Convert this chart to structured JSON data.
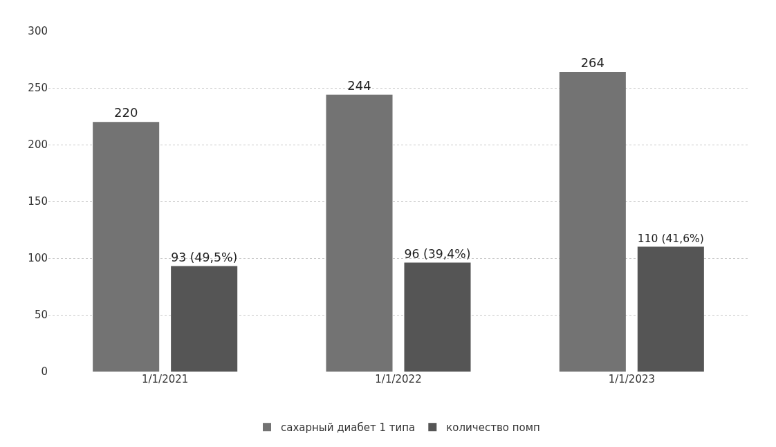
{
  "chart_data": {
    "type": "bar",
    "categories": [
      "1/1/2021",
      "1/1/2022",
      "1/1/2023"
    ],
    "series": [
      {
        "name": "сахарный диабет 1 типа",
        "color": "#737373",
        "values": [
          220,
          244,
          264
        ],
        "value_labels": [
          "220",
          "244",
          "264"
        ]
      },
      {
        "name": "количество помп",
        "color": "#555555",
        "values": [
          93,
          96,
          110
        ],
        "value_labels": [
          "93 (49,5%)",
          "96 (39,4%)",
          "110 (41,6%)"
        ]
      }
    ],
    "ylim": [
      0,
      300
    ],
    "yticks": [
      0,
      50,
      100,
      150,
      200,
      250,
      300
    ],
    "grid": "y",
    "legend": "bottom"
  }
}
